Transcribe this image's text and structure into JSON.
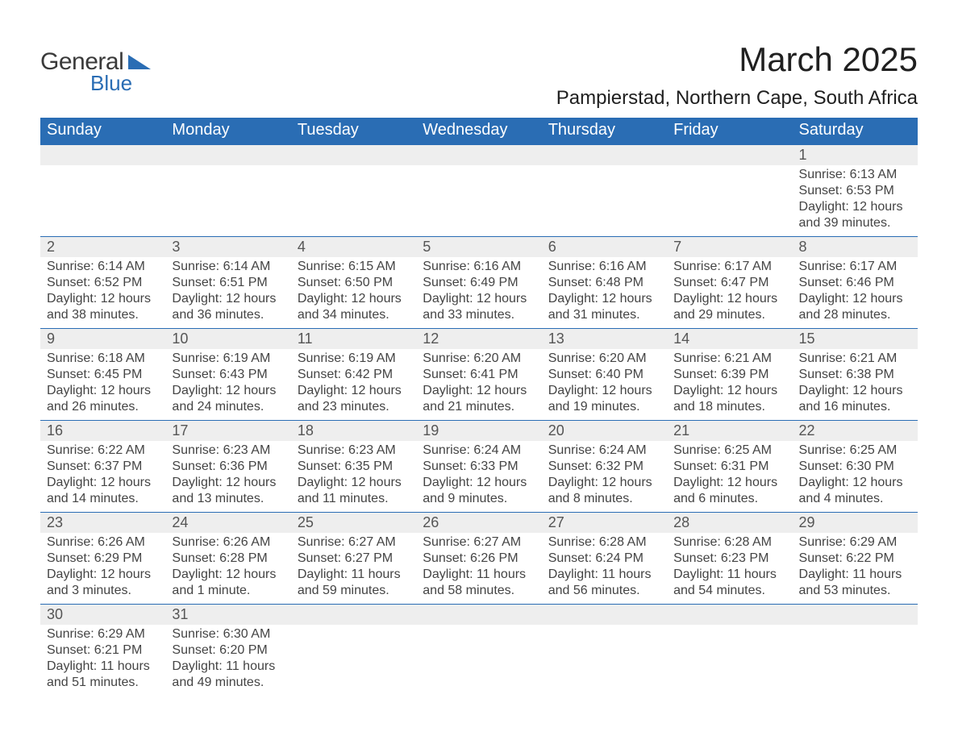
{
  "brand": {
    "part1": "General",
    "part2": "Blue"
  },
  "title": "March 2025",
  "location": "Pampierstad, Northern Cape, South Africa",
  "weekday_headers": [
    "Sunday",
    "Monday",
    "Tuesday",
    "Wednesday",
    "Thursday",
    "Friday",
    "Saturday"
  ],
  "colors": {
    "accent": "#2a6db4",
    "daynum_bg": "#eeeeee",
    "text": "#444444",
    "title_text": "#202020",
    "white": "#ffffff"
  },
  "typography": {
    "title_fontsize": 42,
    "location_fontsize": 24,
    "header_fontsize": 20,
    "daynum_fontsize": 18,
    "body_fontsize": 16
  },
  "calendar": {
    "type": "table",
    "columns": 7,
    "rows": 6,
    "cells": [
      [
        null,
        null,
        null,
        null,
        null,
        null,
        {
          "n": "1",
          "sunrise": "6:13 AM",
          "sunset": "6:53 PM",
          "daylight": "12 hours and 39 minutes."
        }
      ],
      [
        {
          "n": "2",
          "sunrise": "6:14 AM",
          "sunset": "6:52 PM",
          "daylight": "12 hours and 38 minutes."
        },
        {
          "n": "3",
          "sunrise": "6:14 AM",
          "sunset": "6:51 PM",
          "daylight": "12 hours and 36 minutes."
        },
        {
          "n": "4",
          "sunrise": "6:15 AM",
          "sunset": "6:50 PM",
          "daylight": "12 hours and 34 minutes."
        },
        {
          "n": "5",
          "sunrise": "6:16 AM",
          "sunset": "6:49 PM",
          "daylight": "12 hours and 33 minutes."
        },
        {
          "n": "6",
          "sunrise": "6:16 AM",
          "sunset": "6:48 PM",
          "daylight": "12 hours and 31 minutes."
        },
        {
          "n": "7",
          "sunrise": "6:17 AM",
          "sunset": "6:47 PM",
          "daylight": "12 hours and 29 minutes."
        },
        {
          "n": "8",
          "sunrise": "6:17 AM",
          "sunset": "6:46 PM",
          "daylight": "12 hours and 28 minutes."
        }
      ],
      [
        {
          "n": "9",
          "sunrise": "6:18 AM",
          "sunset": "6:45 PM",
          "daylight": "12 hours and 26 minutes."
        },
        {
          "n": "10",
          "sunrise": "6:19 AM",
          "sunset": "6:43 PM",
          "daylight": "12 hours and 24 minutes."
        },
        {
          "n": "11",
          "sunrise": "6:19 AM",
          "sunset": "6:42 PM",
          "daylight": "12 hours and 23 minutes."
        },
        {
          "n": "12",
          "sunrise": "6:20 AM",
          "sunset": "6:41 PM",
          "daylight": "12 hours and 21 minutes."
        },
        {
          "n": "13",
          "sunrise": "6:20 AM",
          "sunset": "6:40 PM",
          "daylight": "12 hours and 19 minutes."
        },
        {
          "n": "14",
          "sunrise": "6:21 AM",
          "sunset": "6:39 PM",
          "daylight": "12 hours and 18 minutes."
        },
        {
          "n": "15",
          "sunrise": "6:21 AM",
          "sunset": "6:38 PM",
          "daylight": "12 hours and 16 minutes."
        }
      ],
      [
        {
          "n": "16",
          "sunrise": "6:22 AM",
          "sunset": "6:37 PM",
          "daylight": "12 hours and 14 minutes."
        },
        {
          "n": "17",
          "sunrise": "6:23 AM",
          "sunset": "6:36 PM",
          "daylight": "12 hours and 13 minutes."
        },
        {
          "n": "18",
          "sunrise": "6:23 AM",
          "sunset": "6:35 PM",
          "daylight": "12 hours and 11 minutes."
        },
        {
          "n": "19",
          "sunrise": "6:24 AM",
          "sunset": "6:33 PM",
          "daylight": "12 hours and 9 minutes."
        },
        {
          "n": "20",
          "sunrise": "6:24 AM",
          "sunset": "6:32 PM",
          "daylight": "12 hours and 8 minutes."
        },
        {
          "n": "21",
          "sunrise": "6:25 AM",
          "sunset": "6:31 PM",
          "daylight": "12 hours and 6 minutes."
        },
        {
          "n": "22",
          "sunrise": "6:25 AM",
          "sunset": "6:30 PM",
          "daylight": "12 hours and 4 minutes."
        }
      ],
      [
        {
          "n": "23",
          "sunrise": "6:26 AM",
          "sunset": "6:29 PM",
          "daylight": "12 hours and 3 minutes."
        },
        {
          "n": "24",
          "sunrise": "6:26 AM",
          "sunset": "6:28 PM",
          "daylight": "12 hours and 1 minute."
        },
        {
          "n": "25",
          "sunrise": "6:27 AM",
          "sunset": "6:27 PM",
          "daylight": "11 hours and 59 minutes."
        },
        {
          "n": "26",
          "sunrise": "6:27 AM",
          "sunset": "6:26 PM",
          "daylight": "11 hours and 58 minutes."
        },
        {
          "n": "27",
          "sunrise": "6:28 AM",
          "sunset": "6:24 PM",
          "daylight": "11 hours and 56 minutes."
        },
        {
          "n": "28",
          "sunrise": "6:28 AM",
          "sunset": "6:23 PM",
          "daylight": "11 hours and 54 minutes."
        },
        {
          "n": "29",
          "sunrise": "6:29 AM",
          "sunset": "6:22 PM",
          "daylight": "11 hours and 53 minutes."
        }
      ],
      [
        {
          "n": "30",
          "sunrise": "6:29 AM",
          "sunset": "6:21 PM",
          "daylight": "11 hours and 51 minutes."
        },
        {
          "n": "31",
          "sunrise": "6:30 AM",
          "sunset": "6:20 PM",
          "daylight": "11 hours and 49 minutes."
        },
        null,
        null,
        null,
        null,
        null
      ]
    ]
  },
  "labels": {
    "sunrise_prefix": "Sunrise: ",
    "sunset_prefix": "Sunset: ",
    "daylight_prefix": "Daylight: "
  }
}
